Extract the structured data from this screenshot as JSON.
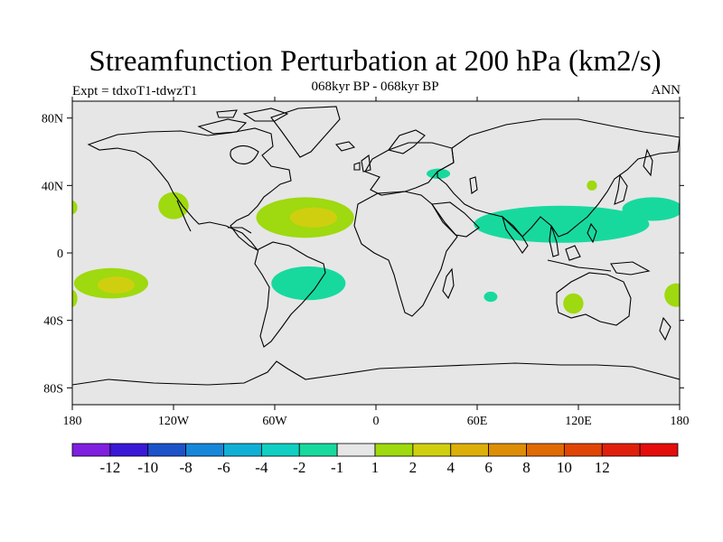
{
  "title": "Streamfunction Perturbation at 200 hPa (km2/s)",
  "experiment": "Expt = tdxoT1-tdwzT1",
  "period": "068kyr BP - 068kyr BP",
  "season": "ANN",
  "map": {
    "projection": "cylindrical-equidistant",
    "lon_range": [
      -180,
      180
    ],
    "lat_range": [
      -90,
      90
    ],
    "x_ticks": [
      {
        "lon": -180,
        "label": "180"
      },
      {
        "lon": -120,
        "label": "120W"
      },
      {
        "lon": -60,
        "label": "60W"
      },
      {
        "lon": 0,
        "label": "0"
      },
      {
        "lon": 60,
        "label": "60E"
      },
      {
        "lon": 120,
        "label": "120E"
      },
      {
        "lon": 180,
        "label": "180"
      }
    ],
    "y_ticks": [
      {
        "lat": 80,
        "label": "80N"
      },
      {
        "lat": 40,
        "label": "40N"
      },
      {
        "lat": 0,
        "label": "0"
      },
      {
        "lat": -40,
        "label": "40S"
      },
      {
        "lat": -80,
        "label": "80S"
      }
    ],
    "background_color": "#e6e6e6",
    "features": [
      {
        "kind": "pos-1",
        "lon": -157,
        "lat": -18,
        "rx": 22,
        "ry": 9
      },
      {
        "kind": "pos-2",
        "lon": -154,
        "lat": -19,
        "rx": 11,
        "ry": 5
      },
      {
        "kind": "pos-1",
        "lon": -120,
        "lat": 28,
        "rx": 9,
        "ry": 8
      },
      {
        "kind": "pos-1",
        "lon": -180,
        "lat": -27,
        "rx": 3,
        "ry": 5
      },
      {
        "kind": "pos-1",
        "lon": -180,
        "lat": 27,
        "rx": 3,
        "ry": 4
      },
      {
        "kind": "pos-1",
        "lon": -42,
        "lat": 21,
        "rx": 29,
        "ry": 12
      },
      {
        "kind": "pos-2",
        "lon": -37,
        "lat": 21,
        "rx": 14,
        "ry": 6
      },
      {
        "kind": "neg-1",
        "lon": -40,
        "lat": -18,
        "rx": 22,
        "ry": 10
      },
      {
        "kind": "neg-1",
        "lon": 37,
        "lat": 47,
        "rx": 7,
        "ry": 3
      },
      {
        "kind": "neg-1",
        "lon": 110,
        "lat": 17,
        "rx": 52,
        "ry": 11
      },
      {
        "kind": "neg-1",
        "lon": 164,
        "lat": 26,
        "rx": 18,
        "ry": 7
      },
      {
        "kind": "neg-1",
        "lon": 68,
        "lat": -26,
        "rx": 4,
        "ry": 3
      },
      {
        "kind": "pos-1",
        "lon": 117,
        "lat": -30,
        "rx": 6,
        "ry": 6
      },
      {
        "kind": "pos-1",
        "lon": 128,
        "lat": 40,
        "rx": 3,
        "ry": 3
      },
      {
        "kind": "pos-1",
        "lon": 178,
        "lat": -25,
        "rx": 7,
        "ry": 7
      }
    ]
  },
  "colorbar": {
    "colors": [
      "#7f1fdf",
      "#3a19d6",
      "#1d53c9",
      "#1687d9",
      "#10b0d6",
      "#11cfc2",
      "#17d99e",
      "#e6e6e6",
      "#9fd90f",
      "#cfcf10",
      "#ddaf09",
      "#dd8e06",
      "#e06a03",
      "#e04505",
      "#e0200c",
      "#e50c0c"
    ],
    "labels": [
      "-12",
      "-10",
      "-8",
      "-6",
      "-4",
      "-2",
      "-1",
      "1",
      "2",
      "4",
      "6",
      "8",
      "10",
      "12"
    ],
    "kind_colors": {
      "neg-1": "#17d99e",
      "pos-1": "#9fd90f",
      "pos-2": "#cfcf10"
    }
  }
}
